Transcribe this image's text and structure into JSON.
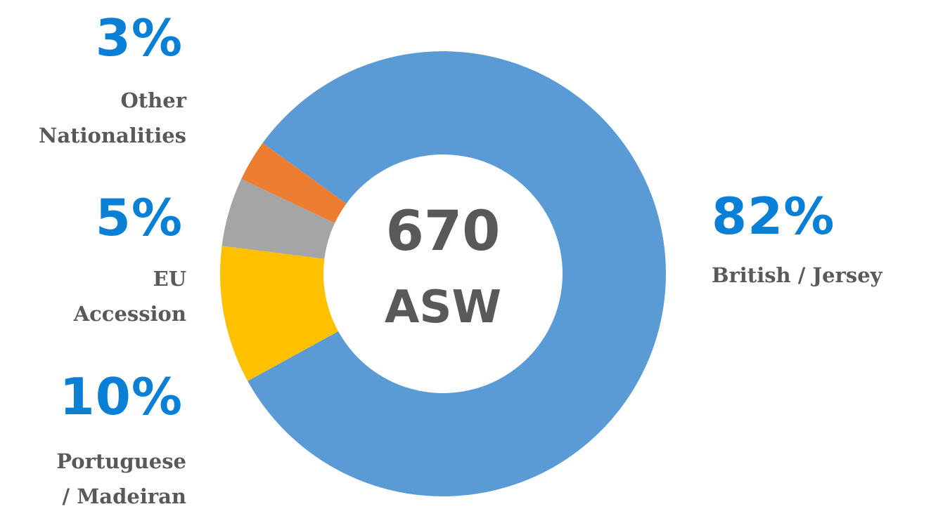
{
  "chart_data": {
    "type": "donut",
    "categories": [
      "British / Jersey",
      "Portuguese / Madeiran",
      "EU Accession",
      "Other Nationalities"
    ],
    "values": [
      82,
      10,
      5,
      3
    ],
    "value_labels": [
      "82%",
      "10%",
      "5%",
      "3%"
    ],
    "colors": [
      "#5b9bd5",
      "#ffc000",
      "#a5a5a5",
      "#ed7d31"
    ],
    "total": 670,
    "total_label": "ASW"
  }
}
